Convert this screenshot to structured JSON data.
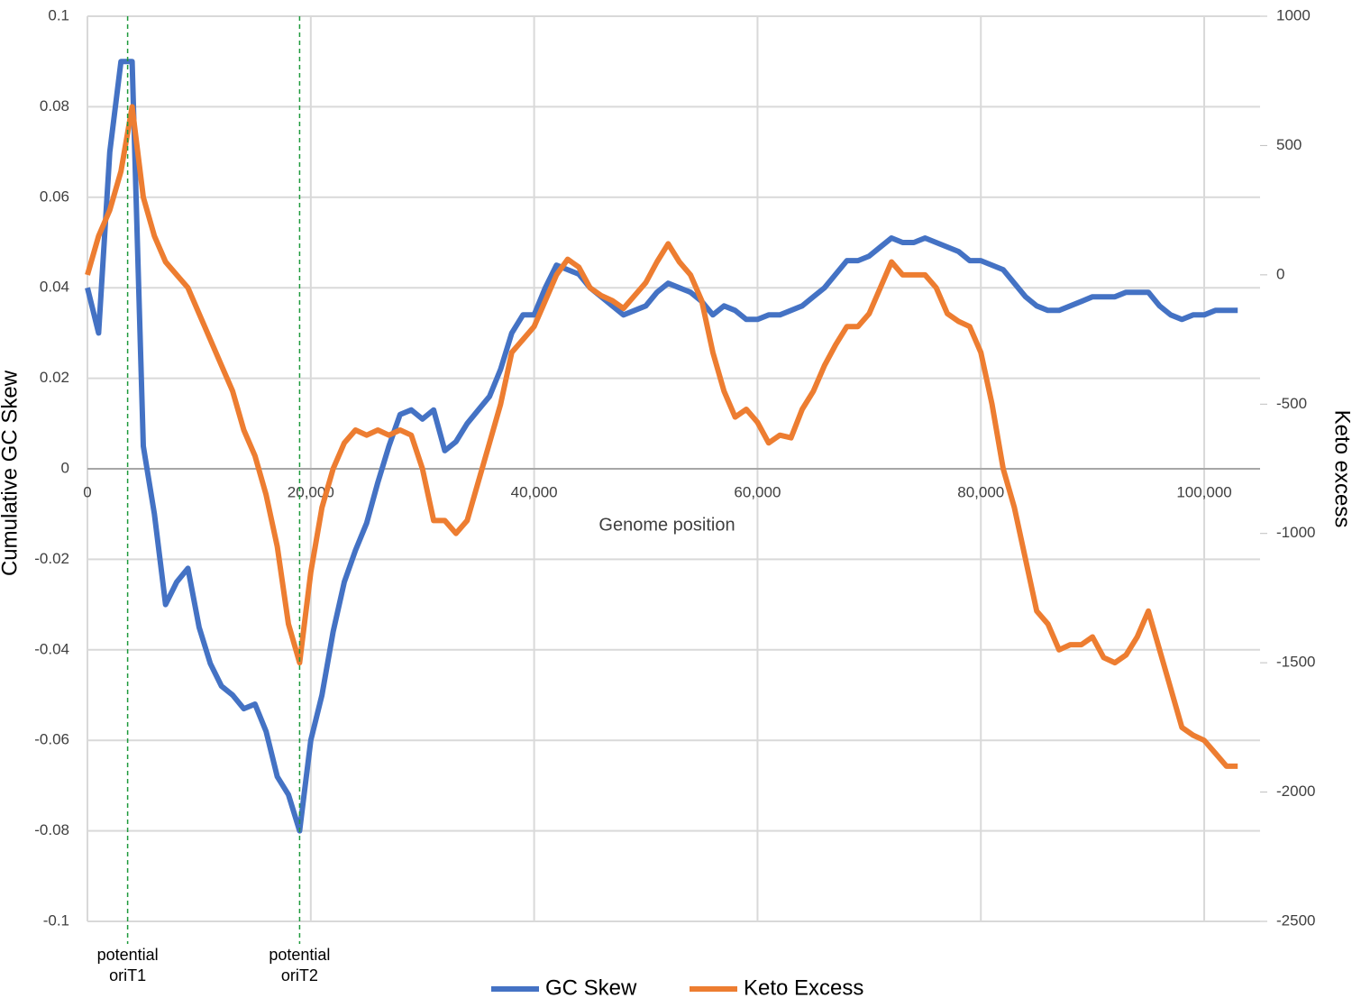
{
  "chart_data": {
    "type": "line",
    "xlabel": "Genome position",
    "ylabel": "Cumulative GC Skew",
    "y2label": "Keto excess",
    "x": [
      0,
      1000,
      2000,
      3000,
      4000,
      5000,
      6000,
      7000,
      8000,
      9000,
      10000,
      11000,
      12000,
      13000,
      14000,
      15000,
      16000,
      17000,
      18000,
      19000,
      20000,
      21000,
      22000,
      23000,
      24000,
      25000,
      26000,
      27000,
      28000,
      29000,
      30000,
      31000,
      32000,
      33000,
      34000,
      35000,
      36000,
      37000,
      38000,
      39000,
      40000,
      41000,
      42000,
      43000,
      44000,
      45000,
      46000,
      47000,
      48000,
      49000,
      50000,
      51000,
      52000,
      53000,
      54000,
      55000,
      56000,
      57000,
      58000,
      59000,
      60000,
      61000,
      62000,
      63000,
      64000,
      65000,
      66000,
      67000,
      68000,
      69000,
      70000,
      71000,
      72000,
      73000,
      74000,
      75000,
      76000,
      77000,
      78000,
      79000,
      80000,
      81000,
      82000,
      83000,
      84000,
      85000,
      86000,
      87000,
      88000,
      89000,
      90000,
      91000,
      92000,
      93000,
      94000,
      95000,
      96000,
      97000,
      98000,
      99000,
      100000,
      101000,
      102000,
      103000
    ],
    "series": [
      {
        "name": "GC Skew",
        "color": "#4472c4",
        "values": [
          0.04,
          0.03,
          0.07,
          0.09,
          0.09,
          0.005,
          -0.01,
          -0.03,
          -0.025,
          -0.022,
          -0.035,
          -0.043,
          -0.048,
          -0.05,
          -0.053,
          -0.052,
          -0.058,
          -0.068,
          -0.072,
          -0.08,
          -0.06,
          -0.05,
          -0.036,
          -0.025,
          -0.018,
          -0.012,
          -0.003,
          0.005,
          0.012,
          0.013,
          0.011,
          0.013,
          0.004,
          0.006,
          0.01,
          0.013,
          0.016,
          0.022,
          0.03,
          0.034,
          0.034,
          0.04,
          0.045,
          0.044,
          0.043,
          0.04,
          0.038,
          0.036,
          0.034,
          0.035,
          0.036,
          0.039,
          0.041,
          0.04,
          0.039,
          0.037,
          0.034,
          0.036,
          0.035,
          0.033,
          0.033,
          0.034,
          0.034,
          0.035,
          0.036,
          0.038,
          0.04,
          0.043,
          0.046,
          0.046,
          0.047,
          0.049,
          0.051,
          0.05,
          0.05,
          0.051,
          0.05,
          0.049,
          0.048,
          0.046,
          0.046,
          0.045,
          0.044,
          0.041,
          0.038,
          0.036,
          0.035,
          0.035,
          0.036,
          0.037,
          0.038,
          0.038,
          0.038,
          0.039,
          0.039,
          0.039,
          0.036,
          0.034,
          0.033,
          0.034,
          0.034,
          0.035,
          0.035,
          0.035
        ]
      },
      {
        "name": "Keto Excess",
        "color": "#ed7d31",
        "axis": "y2",
        "values": [
          0,
          150,
          250,
          400,
          650,
          300,
          150,
          50,
          0,
          -50,
          -150,
          -250,
          -350,
          -450,
          -600,
          -700,
          -850,
          -1050,
          -1350,
          -1500,
          -1150,
          -900,
          -750,
          -650,
          -600,
          -620,
          -600,
          -620,
          -600,
          -620,
          -750,
          -950,
          -950,
          -1000,
          -950,
          -800,
          -650,
          -500,
          -300,
          -250,
          -200,
          -100,
          0,
          60,
          30,
          -50,
          -80,
          -100,
          -130,
          -80,
          -30,
          50,
          120,
          50,
          0,
          -100,
          -300,
          -450,
          -550,
          -520,
          -570,
          -650,
          -620,
          -630,
          -520,
          -450,
          -350,
          -270,
          -200,
          -200,
          -150,
          -50,
          50,
          0,
          0,
          0,
          -50,
          -150,
          -180,
          -200,
          -300,
          -500,
          -750,
          -900,
          -1100,
          -1300,
          -1350,
          -1450,
          -1430,
          -1430,
          -1400,
          -1480,
          -1500,
          -1470,
          -1400,
          -1300,
          -1450,
          -1600,
          -1750,
          -1780,
          -1800,
          -1850,
          -1900,
          -1900
        ]
      }
    ],
    "xlim": [
      0,
      105000
    ],
    "xticks": [
      0,
      {
        "value": 20000,
        "label": "20,000"
      },
      {
        "value": 40000,
        "label": "40,000"
      },
      {
        "value": 60000,
        "label": "60,000"
      },
      {
        "value": 80000,
        "label": "80,000"
      },
      {
        "value": 100000,
        "label": "100,000"
      }
    ],
    "ylim": [
      -0.1,
      0.1
    ],
    "yticks": [
      -0.1,
      -0.08,
      -0.06,
      -0.04,
      -0.02,
      0,
      0.02,
      0.04,
      0.06,
      0.08,
      0.1
    ],
    "y2lim": [
      -2500,
      1000
    ],
    "y2ticks": [
      -2500,
      -2000,
      -1500,
      -1000,
      -500,
      0,
      500,
      1000
    ],
    "grid": true,
    "legend": "bottom",
    "annotations": [
      {
        "x": 3600,
        "label": [
          "potential",
          "oriT1"
        ],
        "color": "#1e9a3c"
      },
      {
        "x": 19000,
        "label": [
          "potential",
          "oriT2"
        ],
        "color": "#1e9a3c"
      }
    ]
  }
}
